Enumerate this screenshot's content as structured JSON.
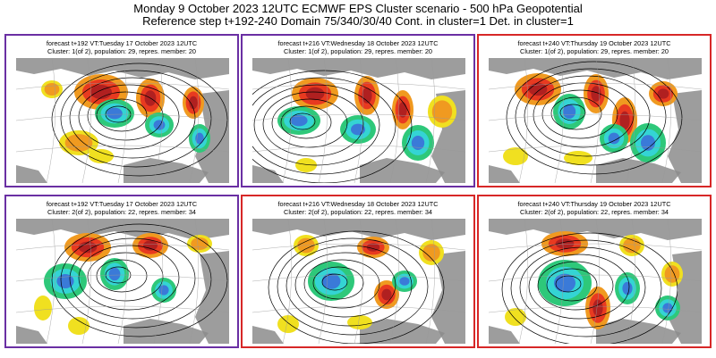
{
  "header": {
    "line1": "Monday 9 October 2023 12UTC ECMWF EPS Cluster scenario - 500 hPa Geopotential",
    "line2": "Reference step t+192-240 Domain 75/340/30/40 Cont. in cluster=1 Det. in cluster=1"
  },
  "colors": {
    "purple_frame": "#6a2fa3",
    "red_frame": "#d72727",
    "anomaly_neg": [
      "#1818d0",
      "#3a7ad8",
      "#34d4d4",
      "#2ec87a"
    ],
    "anomaly_pos": [
      "#f0e020",
      "#f09a20",
      "#e83a20",
      "#b02020",
      "#8a1a5a"
    ],
    "land": "#8c8c8c",
    "sea": "#ffffff"
  },
  "panels": [
    {
      "frame_color": "#6a2fa3",
      "forecast": "forecast t+192 VT:Tuesday 17 October 2023 12UTC",
      "cluster": "Cluster: 1(of 2), population: 29, repres. member: 20"
    },
    {
      "frame_color": "#6a2fa3",
      "forecast": "forecast t+216 VT:Wednesday 18 October 2023 12UTC",
      "cluster": "Cluster: 1(of 2), population: 29, repres. member: 20"
    },
    {
      "frame_color": "#d72727",
      "forecast": "forecast t+240 VT:Thursday 19 October 2023 12UTC",
      "cluster": "Cluster: 1(of 2), population: 29, repres. member: 20"
    },
    {
      "frame_color": "#6a2fa3",
      "forecast": "forecast t+192 VT:Tuesday 17 October 2023 12UTC",
      "cluster": "Cluster: 2(of 2), population: 22, repres. member: 34"
    },
    {
      "frame_color": "#d72727",
      "forecast": "forecast t+216 VT:Wednesday 18 October 2023 12UTC",
      "cluster": "Cluster: 2(of 2), population: 22, repres. member: 34"
    },
    {
      "frame_color": "#d72727",
      "forecast": "forecast t+240 VT:Thursday 19 October 2023 12UTC",
      "cluster": "Cluster: 2(of 2), population: 22, repres. member: 34"
    }
  ]
}
